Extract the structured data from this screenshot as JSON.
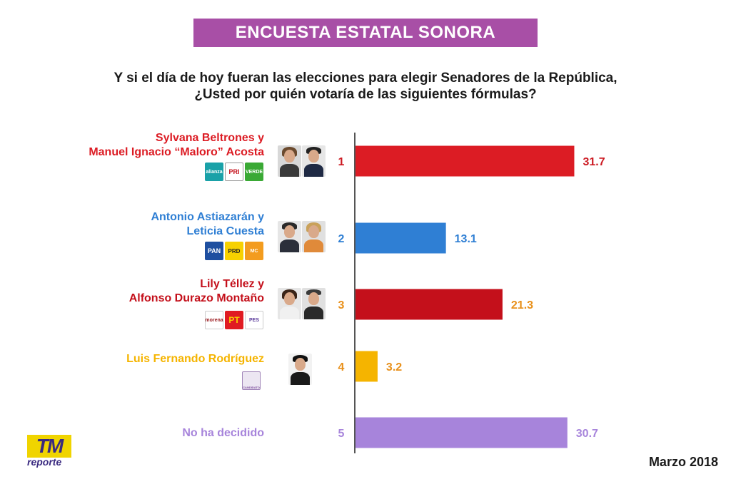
{
  "title": "ENCUESTA ESTATAL SONORA",
  "question_line1": "Y si el día de hoy fueran las elecciones para elegir Senadores de la República,",
  "question_line2": "¿Usted por quién votaría de las siguientes fórmulas?",
  "date": "Marzo 2018",
  "brand": {
    "top": "TM",
    "bottom": "reporte"
  },
  "candidates": [
    {
      "line1": "Sylvana Beltrones y",
      "line2": "Manuel Ignacio “Maloro” Acosta",
      "color": "#dc1c24",
      "logos": [
        "alianza",
        "PRI",
        "VERDE"
      ]
    },
    {
      "line1": "Antonio Astiazarán y",
      "line2": "Leticia Cuesta",
      "color": "#2f7fd4",
      "logos": [
        "PAN",
        "PRD",
        "MC"
      ]
    },
    {
      "line1": "Lily Téllez y",
      "line2": "Alfonso Durazo Montaño",
      "color": "#c4101b",
      "logos": [
        "morena",
        "PT",
        "PES"
      ]
    },
    {
      "line1": "Luis Fernando Rodríguez",
      "line2": "",
      "color": "#f5b400",
      "logos": [
        "CANDIDATO"
      ]
    },
    {
      "line1": "No ha decidido",
      "line2": "",
      "color": "#a784db",
      "logos": []
    }
  ],
  "chart_data": {
    "type": "bar",
    "orientation": "horizontal",
    "categories": [
      "1",
      "2",
      "3",
      "4",
      "5"
    ],
    "values": [
      31.7,
      13.1,
      21.3,
      3.2,
      30.7
    ],
    "value_labels": [
      "31.7",
      "13.1",
      "21.3",
      "3.2",
      "30.7"
    ],
    "colors": [
      "#dc1c24",
      "#2f7fd4",
      "#c4101b",
      "#f5b400",
      "#a784db"
    ],
    "label_colors": [
      "#cc1a22",
      "#2f7fd4",
      "#e8901a",
      "#e8901a",
      "#a784db"
    ],
    "xlim": [
      0,
      33
    ]
  }
}
